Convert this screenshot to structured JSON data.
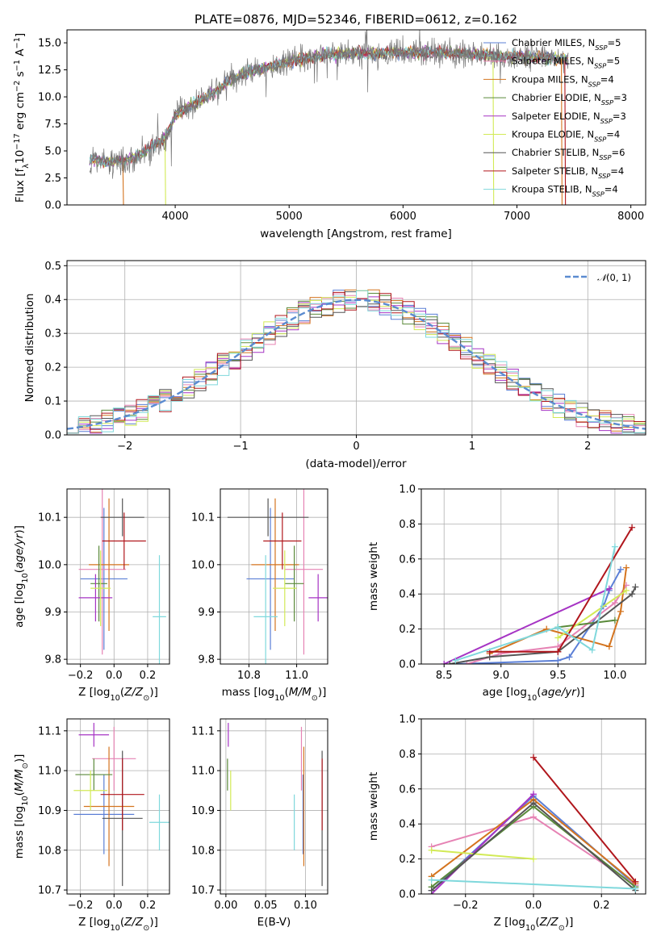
{
  "colors": {
    "Chabrier MILES": "#5b7fd6",
    "Salpeter MILES": "#e683b4",
    "Kroupa MILES": "#d4741f",
    "Chabrier ELODIE": "#5a8a3a",
    "Salpeter ELODIE": "#a634c4",
    "Kroupa ELODIE": "#d2ea56",
    "Chabrier STELIB": "#555555",
    "Salpeter STELIB": "#b0161c",
    "Kroupa STELIB": "#7fd8dc"
  },
  "chart_data": [
    {
      "id": "spectrum",
      "type": "line",
      "title": "PLATE=0876, MJD=52346, FIBERID=0612, z=0.162",
      "xlabel": "wavelength [Angstrom, rest frame]",
      "ylabel": "Flux [f_λ10^-17 erg cm^-2 s^-1 A^-1]",
      "xlim": [
        3050,
        8130
      ],
      "ylim": [
        0,
        16.2
      ],
      "xticks": [
        4000,
        5000,
        6000,
        7000,
        8000
      ],
      "yticks": [
        0.0,
        2.5,
        5.0,
        7.5,
        10.0,
        12.5,
        15.0
      ],
      "grid": false,
      "legend_position": "right",
      "legend": [
        {
          "name": "Chabrier MILES",
          "nssp": "5"
        },
        {
          "name": "Salpeter MILES",
          "nssp": "5"
        },
        {
          "name": "Kroupa MILES",
          "nssp": "4"
        },
        {
          "name": "Chabrier ELODIE",
          "nssp": "3"
        },
        {
          "name": "Salpeter ELODIE",
          "nssp": "3"
        },
        {
          "name": "Kroupa ELODIE",
          "nssp": "4"
        },
        {
          "name": "Chabrier STELIB",
          "nssp": "6"
        },
        {
          "name": "Salpeter STELIB",
          "nssp": "4"
        },
        {
          "name": "Kroupa STELIB",
          "nssp": "4"
        }
      ],
      "data_series": {
        "name": "data",
        "x": [
          3250,
          3400,
          3550,
          3700,
          3800,
          3900,
          3950,
          4000,
          4100,
          4200,
          4300,
          4400,
          4500,
          4700,
          4900,
          5100,
          5300,
          5500,
          5700,
          5900,
          6100,
          6300,
          6500,
          6700,
          6900,
          7100,
          7300,
          7450
        ],
        "y": [
          4.2,
          4.0,
          4.1,
          4.6,
          5.5,
          6.0,
          7.0,
          8.3,
          9.0,
          9.5,
          10.2,
          10.8,
          11.7,
          12.5,
          13.0,
          13.5,
          13.8,
          14.0,
          14.0,
          14.1,
          14.1,
          14.1,
          14.0,
          13.9,
          13.7,
          13.7,
          13.6,
          13.5
        ]
      }
    },
    {
      "id": "residuals",
      "type": "bar",
      "xlabel": "(data-model)/error",
      "ylabel": "Normed distribution",
      "xlim": [
        -2.5,
        2.5
      ],
      "ylim": [
        0,
        0.515
      ],
      "xticks": [
        -2,
        -1,
        0,
        1,
        2
      ],
      "yticks": [
        0.0,
        0.1,
        0.2,
        0.3,
        0.4,
        0.5
      ],
      "grid": true,
      "legend_position": "top-right",
      "curve_label": "N(0,1)",
      "bin_width": 0.1
    },
    {
      "id": "age_vs_Z",
      "type": "scatter",
      "xlabel": "Z [log10(Z/Z☉)]",
      "ylabel": "age  [log10(age/yr)]",
      "xlim": [
        -0.28,
        0.33
      ],
      "ylim": [
        9.79,
        10.16
      ],
      "xticks": [
        -0.2,
        0.0,
        0.2
      ],
      "yticks": [
        9.8,
        9.9,
        10.0,
        10.1
      ],
      "grid": true,
      "points": [
        {
          "name": "Chabrier MILES",
          "x": -0.06,
          "y": 9.97,
          "xerr": 0.14,
          "yerr": 0.15
        },
        {
          "name": "Salpeter MILES",
          "x": -0.07,
          "y": 9.99,
          "xerr": 0.14,
          "yerr": 0.18
        },
        {
          "name": "Kroupa MILES",
          "x": -0.03,
          "y": 10.0,
          "xerr": 0.12,
          "yerr": 0.14
        },
        {
          "name": "Chabrier ELODIE",
          "x": -0.09,
          "y": 9.96,
          "xerr": 0.05,
          "yerr": 0.08
        },
        {
          "name": "Salpeter ELODIE",
          "x": -0.11,
          "y": 9.93,
          "xerr": 0.1,
          "yerr": 0.05
        },
        {
          "name": "Kroupa ELODIE",
          "x": -0.08,
          "y": 9.95,
          "xerr": 0.06,
          "yerr": 0.08
        },
        {
          "name": "Chabrier STELIB",
          "x": 0.05,
          "y": 10.1,
          "xerr": 0.13,
          "yerr": 0.04
        },
        {
          "name": "Salpeter STELIB",
          "x": 0.06,
          "y": 10.05,
          "xerr": 0.13,
          "yerr": 0.06
        },
        {
          "name": "Kroupa STELIB",
          "x": 0.27,
          "y": 9.89,
          "xerr": 0.04,
          "yerr": 0.13
        }
      ]
    },
    {
      "id": "age_vs_mass",
      "type": "scatter",
      "xlabel": "mass [log10(M/M☉)]",
      "ylabel": "",
      "xlim": [
        10.68,
        11.13
      ],
      "ylim": [
        9.79,
        10.16
      ],
      "xticks": [
        10.8,
        11.0
      ],
      "yticks": [
        9.8,
        9.9,
        10.0,
        10.1
      ],
      "grid": true,
      "points": [
        {
          "name": "Chabrier MILES",
          "x": 10.89,
          "y": 9.97,
          "xerr": 0.1,
          "yerr": 0.15
        },
        {
          "name": "Salpeter MILES",
          "x": 11.03,
          "y": 9.99,
          "xerr": 0.08,
          "yerr": 0.18
        },
        {
          "name": "Kroupa MILES",
          "x": 10.91,
          "y": 10.0,
          "xerr": 0.1,
          "yerr": 0.14
        },
        {
          "name": "Chabrier ELODIE",
          "x": 10.99,
          "y": 9.96,
          "xerr": 0.04,
          "yerr": 0.08
        },
        {
          "name": "Salpeter ELODIE",
          "x": 11.09,
          "y": 9.93,
          "xerr": 0.04,
          "yerr": 0.05
        },
        {
          "name": "Kroupa ELODIE",
          "x": 10.95,
          "y": 9.95,
          "xerr": 0.05,
          "yerr": 0.08
        },
        {
          "name": "Chabrier STELIB",
          "x": 10.88,
          "y": 10.1,
          "xerr": 0.17,
          "yerr": 0.04
        },
        {
          "name": "Salpeter STELIB",
          "x": 10.94,
          "y": 10.05,
          "xerr": 0.08,
          "yerr": 0.06
        },
        {
          "name": "Kroupa STELIB",
          "x": 10.87,
          "y": 9.89,
          "xerr": 0.05,
          "yerr": 0.13
        }
      ]
    },
    {
      "id": "mass_vs_Z",
      "type": "scatter",
      "xlabel": "Z [log10(Z/Z☉)]",
      "ylabel": "mass [log10(M/M☉)]",
      "xlim": [
        -0.28,
        0.33
      ],
      "ylim": [
        10.69,
        11.13
      ],
      "xticks": [
        -0.2,
        0.0,
        0.2
      ],
      "yticks": [
        10.7,
        10.8,
        10.9,
        11.0,
        11.1
      ],
      "grid": true,
      "points": [
        {
          "name": "Chabrier MILES",
          "x": -0.06,
          "y": 10.89,
          "xerr": 0.18,
          "yerr": 0.1
        },
        {
          "name": "Salpeter MILES",
          "x": 0.0,
          "y": 11.03,
          "xerr": 0.13,
          "yerr": 0.08
        },
        {
          "name": "Kroupa MILES",
          "x": -0.03,
          "y": 10.91,
          "xerr": 0.15,
          "yerr": 0.15
        },
        {
          "name": "Chabrier ELODIE",
          "x": -0.12,
          "y": 10.99,
          "xerr": 0.11,
          "yerr": 0.04
        },
        {
          "name": "Salpeter ELODIE",
          "x": -0.12,
          "y": 11.09,
          "xerr": 0.09,
          "yerr": 0.03
        },
        {
          "name": "Kroupa ELODIE",
          "x": -0.14,
          "y": 10.95,
          "xerr": 0.1,
          "yerr": 0.05
        },
        {
          "name": "Chabrier STELIB",
          "x": 0.05,
          "y": 10.88,
          "xerr": 0.12,
          "yerr": 0.17
        },
        {
          "name": "Salpeter STELIB",
          "x": 0.05,
          "y": 10.94,
          "xerr": 0.13,
          "yerr": 0.09
        },
        {
          "name": "Kroupa STELIB",
          "x": 0.27,
          "y": 10.87,
          "xerr": 0.06,
          "yerr": 0.07
        }
      ]
    },
    {
      "id": "mass_vs_ebv",
      "type": "scatter",
      "xlabel": "E(B-V)",
      "ylabel": "",
      "xlim": [
        -0.007,
        0.128
      ],
      "ylim": [
        10.69,
        11.13
      ],
      "xticks": [
        0.0,
        0.05,
        0.1
      ],
      "yticks": [
        10.7,
        10.8,
        10.9,
        11.0,
        11.1
      ],
      "grid": true,
      "points": [
        {
          "name": "Chabrier MILES",
          "x": 0.097,
          "y": 10.89,
          "yerr": 0.1
        },
        {
          "name": "Salpeter MILES",
          "x": 0.095,
          "y": 11.03,
          "yerr": 0.08
        },
        {
          "name": "Kroupa MILES",
          "x": 0.098,
          "y": 10.91,
          "yerr": 0.15
        },
        {
          "name": "Chabrier ELODIE",
          "x": 0.002,
          "y": 10.99,
          "yerr": 0.04
        },
        {
          "name": "Salpeter ELODIE",
          "x": 0.003,
          "y": 11.09,
          "yerr": 0.03
        },
        {
          "name": "Kroupa ELODIE",
          "x": 0.006,
          "y": 10.95,
          "yerr": 0.05
        },
        {
          "name": "Chabrier STELIB",
          "x": 0.121,
          "y": 10.88,
          "yerr": 0.17
        },
        {
          "name": "Salpeter STELIB",
          "x": 0.121,
          "y": 10.94,
          "yerr": 0.09
        },
        {
          "name": "Kroupa STELIB",
          "x": 0.086,
          "y": 10.87,
          "yerr": 0.07
        }
      ]
    },
    {
      "id": "weights_vs_age",
      "type": "line",
      "xlabel": "age  [log10(age/yr)]",
      "ylabel": "mass weight",
      "xlim": [
        8.3,
        10.27
      ],
      "ylim": [
        0,
        1.0
      ],
      "xticks": [
        8.5,
        9.0,
        9.5,
        10.0
      ],
      "yticks": [
        0.0,
        0.2,
        0.4,
        0.6,
        0.8,
        1.0
      ],
      "grid": true,
      "series": [
        {
          "name": "Chabrier MILES",
          "x": [
            8.6,
            9.5,
            9.6,
            9.9,
            9.95,
            10.05
          ],
          "y": [
            0.0,
            0.02,
            0.04,
            0.33,
            0.42,
            0.54
          ]
        },
        {
          "name": "Salpeter MILES",
          "x": [
            8.7,
            9.0,
            9.5,
            10.0,
            10.1
          ],
          "y": [
            0.0,
            0.06,
            0.1,
            0.35,
            0.45
          ]
        },
        {
          "name": "Kroupa MILES",
          "x": [
            8.9,
            9.4,
            9.95,
            10.05,
            10.1
          ],
          "y": [
            0.06,
            0.2,
            0.1,
            0.3,
            0.55
          ]
        },
        {
          "name": "Chabrier ELODIE",
          "x": [
            9.5,
            10.0
          ],
          "y": [
            0.21,
            0.25
          ]
        },
        {
          "name": "Salpeter ELODIE",
          "x": [
            8.5,
            9.95
          ],
          "y": [
            0.0,
            0.43
          ]
        },
        {
          "name": "Kroupa ELODIE",
          "x": [
            9.5,
            10.1
          ],
          "y": [
            0.15,
            0.42
          ]
        },
        {
          "name": "Chabrier STELIB",
          "x": [
            8.55,
            8.9,
            9.5,
            10.15,
            10.18
          ],
          "y": [
            0.0,
            0.04,
            0.07,
            0.4,
            0.44
          ]
        },
        {
          "name": "Salpeter STELIB",
          "x": [
            8.9,
            9.5,
            10.15
          ],
          "y": [
            0.07,
            0.07,
            0.78
          ]
        },
        {
          "name": "Kroupa STELIB",
          "x": [
            8.6,
            9.5,
            9.8,
            10.0
          ],
          "y": [
            0.02,
            0.21,
            0.08,
            0.67
          ]
        }
      ]
    },
    {
      "id": "weights_vs_Z",
      "type": "line",
      "xlabel": "Z [log10(Z/Z☉)]",
      "ylabel": "mass weight",
      "xlim": [
        -0.33,
        0.33
      ],
      "ylim": [
        0,
        1.0
      ],
      "xticks": [
        -0.2,
        0.0,
        0.2
      ],
      "yticks": [
        0.0,
        0.2,
        0.4,
        0.6,
        0.8,
        1.0
      ],
      "grid": true,
      "series": [
        {
          "name": "Chabrier MILES",
          "x": [
            -0.3,
            0.0,
            0.3
          ],
          "y": [
            0.02,
            0.56,
            0.05
          ]
        },
        {
          "name": "Salpeter MILES",
          "x": [
            -0.3,
            0.0,
            0.3
          ],
          "y": [
            0.27,
            0.44,
            0.05
          ]
        },
        {
          "name": "Kroupa MILES",
          "x": [
            -0.3,
            0.0,
            0.3
          ],
          "y": [
            0.1,
            0.54,
            0.06
          ]
        },
        {
          "name": "Chabrier ELODIE",
          "x": [
            -0.3,
            0.0,
            0.3
          ],
          "y": [
            0.04,
            0.5,
            0.04
          ]
        },
        {
          "name": "Salpeter ELODIE",
          "x": [
            -0.3,
            0.0
          ],
          "y": [
            0.0,
            0.57
          ]
        },
        {
          "name": "Kroupa ELODIE",
          "x": [
            -0.3,
            0.0
          ],
          "y": [
            0.25,
            0.2
          ]
        },
        {
          "name": "Chabrier STELIB",
          "x": [
            -0.3,
            0.0,
            0.3
          ],
          "y": [
            0.02,
            0.52,
            0.02
          ]
        },
        {
          "name": "Salpeter STELIB",
          "x": [
            0.0,
            0.3
          ],
          "y": [
            0.78,
            0.07
          ]
        },
        {
          "name": "Kroupa STELIB",
          "x": [
            -0.3,
            0.3
          ],
          "y": [
            0.08,
            0.03
          ]
        }
      ]
    }
  ]
}
